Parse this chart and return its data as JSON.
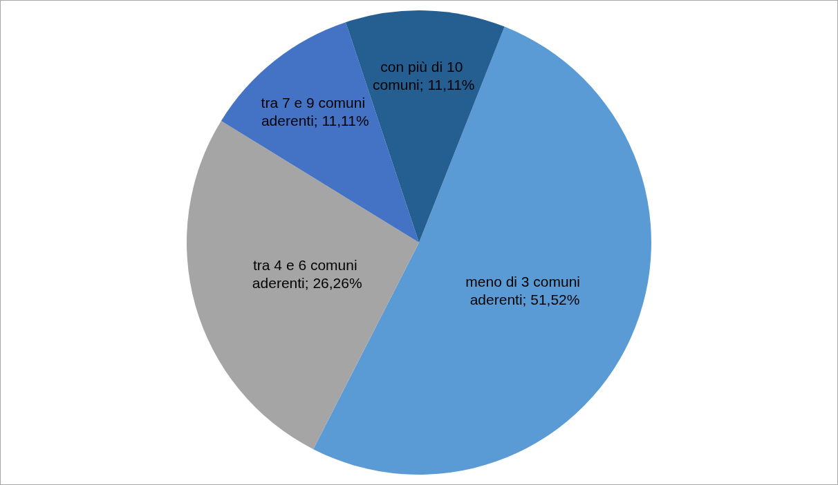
{
  "chart_data": {
    "type": "pie",
    "categories": [
      "meno di 3 comuni aderenti",
      "tra 4 e 6 comuni aderenti",
      "tra 7 e 9 comuni aderenti",
      "con più di 10 comuni"
    ],
    "values": [
      51.52,
      26.26,
      11.11,
      11.11
    ],
    "colors": [
      "#5b9bd5",
      "#a5a5a5",
      "#4472c4",
      "#255e91"
    ],
    "value_labels": [
      "51,52%",
      "26,26%",
      "11,11%",
      "11,11%"
    ]
  }
}
